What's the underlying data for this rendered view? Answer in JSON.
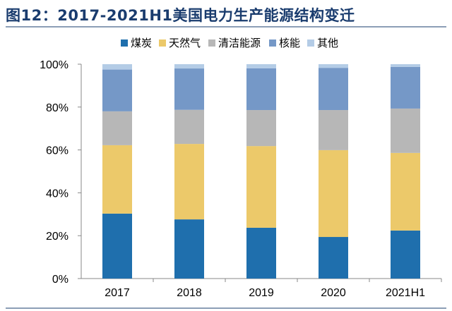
{
  "chart_data": {
    "type": "bar",
    "stacked": true,
    "title": "图12：2017-2021H1美国电力生产能源结构变迁",
    "categories": [
      "2017",
      "2018",
      "2019",
      "2020",
      "2021H1"
    ],
    "series": [
      {
        "name": "煤炭",
        "color": "#1f6fad",
        "values": [
          30.3,
          27.6,
          23.7,
          19.4,
          22.4
        ]
      },
      {
        "name": "天然气",
        "color": "#ecc96a",
        "values": [
          31.9,
          35.2,
          38.1,
          40.5,
          36.2
        ]
      },
      {
        "name": "清洁能源",
        "color": "#b7b7b7",
        "values": [
          15.8,
          15.9,
          16.8,
          18.7,
          20.7
        ]
      },
      {
        "name": "核能",
        "color": "#7598c7",
        "values": [
          19.5,
          19.3,
          19.5,
          19.7,
          19.4
        ]
      },
      {
        "name": "其他",
        "color": "#b4cce6",
        "values": [
          2.5,
          2.0,
          1.9,
          1.7,
          1.3
        ]
      }
    ],
    "yticks": [
      "0%",
      "20%",
      "40%",
      "60%",
      "80%",
      "100%"
    ],
    "ylim": [
      0,
      100
    ],
    "legend": "top-center",
    "xlabel": "",
    "ylabel": "",
    "grid": false
  }
}
